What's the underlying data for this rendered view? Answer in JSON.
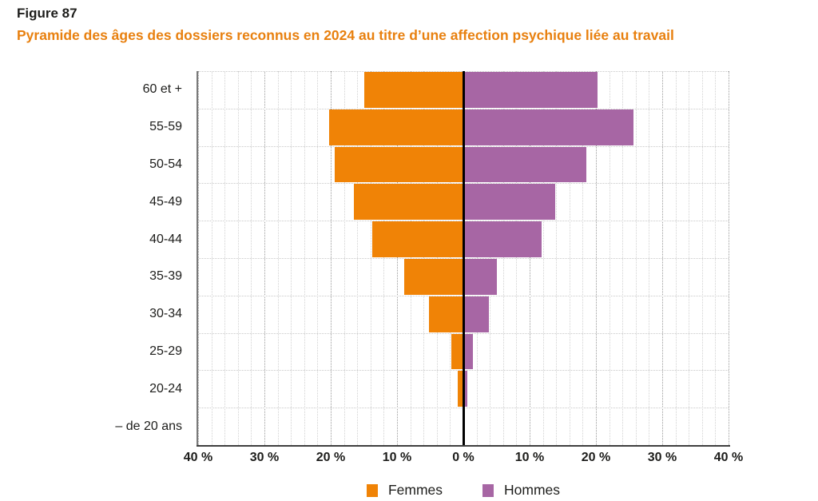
{
  "figure": {
    "label": "Figure 87",
    "title": "Pyramide des âges des dossiers reconnus en 2024 au titre d’une affection psychique liée au travail"
  },
  "chart_data": {
    "type": "bar",
    "subtype": "population_pyramid",
    "orientation": "horizontal",
    "title": "Pyramide des âges des dossiers reconnus en 2024 au titre d’une affection psychique liée au travail",
    "categories": [
      "60 et +",
      "55-59",
      "50-54",
      "45-49",
      "40-44",
      "35-39",
      "30-34",
      "25-29",
      "20-24",
      "– de 20 ans"
    ],
    "series": [
      {
        "name": "Femmes",
        "side": "left",
        "color": "#f08306",
        "values": [
          14.9,
          20.2,
          19.4,
          16.5,
          13.7,
          8.9,
          5.2,
          1.8,
          0.9,
          0.0
        ]
      },
      {
        "name": "Hommes",
        "side": "right",
        "color": "#a766a4",
        "values": [
          20.2,
          25.7,
          18.5,
          13.9,
          11.8,
          5.1,
          3.8,
          1.5,
          0.6,
          0.0
        ]
      }
    ],
    "x_axis": {
      "unit": "%",
      "tick_labels": [
        "40 %",
        "30 %",
        "20 %",
        "10 %",
        "0 %",
        "10 %",
        "20 %",
        "30 %",
        "40 %"
      ],
      "tick_values": [
        -40,
        -30,
        -20,
        -10,
        0,
        10,
        20,
        30,
        40
      ],
      "range": [
        -40,
        40
      ],
      "minor_step_pct": 2,
      "major_step_pct": 10
    },
    "grid": "dotted",
    "legend": {
      "position": "bottom",
      "entries": [
        "Femmes",
        "Hommes"
      ]
    }
  },
  "colors": {
    "femmes": "#f08306",
    "hommes": "#a766a4",
    "title_accent": "#e8800f",
    "text": "#1d1d1b",
    "axis": "#3f3f3f",
    "center_line": "#000000",
    "grid_minor": "#d2d2d2",
    "grid_major": "#9c9c9c",
    "grid_horizontal": "#c9c9c9"
  }
}
